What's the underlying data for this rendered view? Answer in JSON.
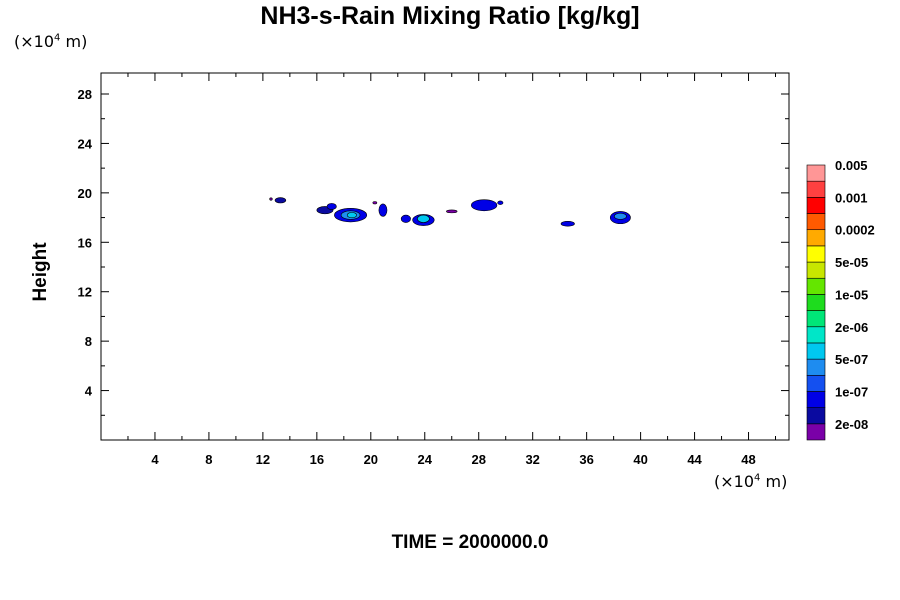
{
  "title": "NH3-s-Rain Mixing Ratio [kg/kg]",
  "y_unit_prefix": "(×10",
  "y_unit_exp": "4",
  "y_unit_suffix": " m)",
  "x_unit_prefix": "(×10",
  "x_unit_exp": "4",
  "x_unit_suffix": " m)",
  "time_label": "TIME = 2000000.0",
  "chart_data": {
    "type": "heatmap",
    "title": "NH3-s-Rain Mixing Ratio [kg/kg]",
    "xlabel": "",
    "ylabel": "Height",
    "xlim": [
      0,
      51
    ],
    "ylim": [
      0,
      29.7
    ],
    "x_ticks": [
      "4",
      "8",
      "12",
      "16",
      "20",
      "24",
      "28",
      "32",
      "36",
      "40",
      "44",
      "48"
    ],
    "y_ticks": [
      "4",
      "8",
      "12",
      "16",
      "20",
      "24",
      "28"
    ],
    "x_tick_values": [
      4,
      8,
      12,
      16,
      20,
      24,
      28,
      32,
      36,
      40,
      44,
      48
    ],
    "y_tick_values": [
      4,
      8,
      12,
      16,
      20,
      24,
      28
    ],
    "colorbar": {
      "colors": [
        "#7a00a8",
        "#0a0aa0",
        "#0000e6",
        "#1450f0",
        "#1e8cf0",
        "#00c8f0",
        "#00e6c8",
        "#00e678",
        "#1edc1e",
        "#64e600",
        "#c8e600",
        "#ffff00",
        "#ffaa00",
        "#ff5a00",
        "#ff0000",
        "#ff4040",
        "#ff9696"
      ],
      "labels": [
        "2e-08",
        "1e-07",
        "5e-07",
        "2e-06",
        "1e-05",
        "5e-05",
        "0.0002",
        "0.001",
        "0.005"
      ]
    },
    "cells": [
      {
        "x": 13.3,
        "y": 19.4,
        "rx": 0.4,
        "ry": 0.22,
        "level": 1
      },
      {
        "x": 12.6,
        "y": 19.5,
        "rx": 0.1,
        "ry": 0.1,
        "level": 0
      },
      {
        "x": 16.6,
        "y": 18.6,
        "rx": 0.6,
        "ry": 0.3,
        "level": 1
      },
      {
        "x": 17.1,
        "y": 18.9,
        "rx": 0.35,
        "ry": 0.25,
        "level": 2
      },
      {
        "x": 18.5,
        "y": 18.2,
        "rx": 1.2,
        "ry": 0.55,
        "level": 2
      },
      {
        "x": 18.5,
        "y": 18.2,
        "rx": 0.7,
        "ry": 0.35,
        "level": 4
      },
      {
        "x": 18.6,
        "y": 18.2,
        "rx": 0.35,
        "ry": 0.22,
        "level": 5
      },
      {
        "x": 20.9,
        "y": 18.6,
        "rx": 0.3,
        "ry": 0.5,
        "level": 2
      },
      {
        "x": 20.3,
        "y": 19.2,
        "rx": 0.15,
        "ry": 0.1,
        "level": 0
      },
      {
        "x": 22.6,
        "y": 17.9,
        "rx": 0.35,
        "ry": 0.3,
        "level": 2
      },
      {
        "x": 23.9,
        "y": 17.8,
        "rx": 0.8,
        "ry": 0.45,
        "level": 2
      },
      {
        "x": 23.9,
        "y": 17.9,
        "rx": 0.45,
        "ry": 0.3,
        "level": 5
      },
      {
        "x": 26.0,
        "y": 18.5,
        "rx": 0.4,
        "ry": 0.12,
        "level": 0
      },
      {
        "x": 28.4,
        "y": 19.0,
        "rx": 0.95,
        "ry": 0.45,
        "level": 2
      },
      {
        "x": 29.6,
        "y": 19.2,
        "rx": 0.2,
        "ry": 0.15,
        "level": 2
      },
      {
        "x": 34.6,
        "y": 17.5,
        "rx": 0.5,
        "ry": 0.2,
        "level": 2
      },
      {
        "x": 38.5,
        "y": 18.0,
        "rx": 0.75,
        "ry": 0.5,
        "level": 2
      },
      {
        "x": 38.5,
        "y": 18.1,
        "rx": 0.45,
        "ry": 0.25,
        "level": 4
      }
    ]
  }
}
